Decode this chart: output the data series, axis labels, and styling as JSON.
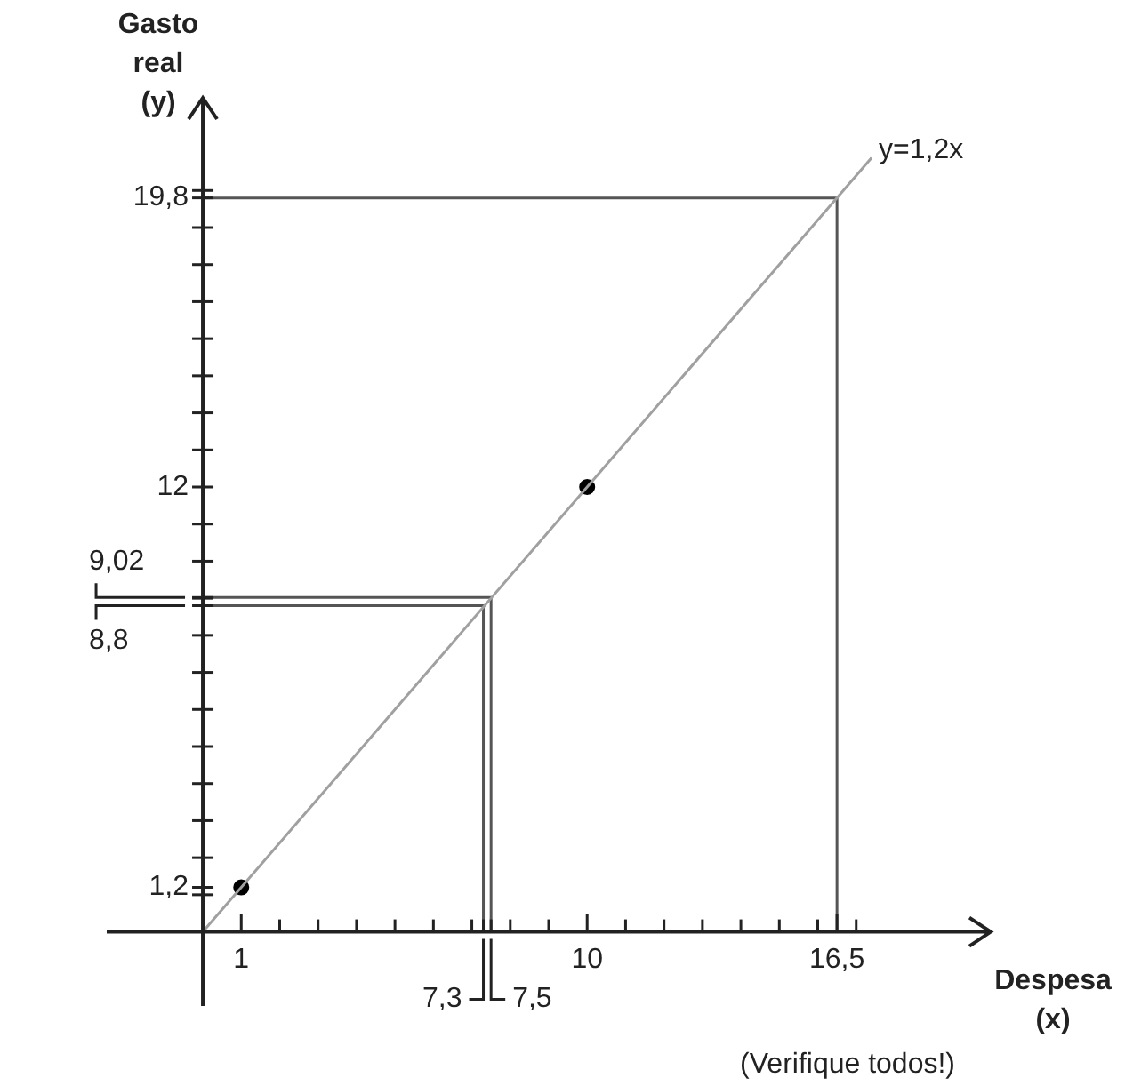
{
  "chart_data": {
    "type": "line",
    "xlabel": "Despesa (x)",
    "ylabel": "Gasto real (y)",
    "xlim": [
      -2.5,
      20.5
    ],
    "ylim": [
      -2,
      22.5
    ],
    "xticks": [
      {
        "value": 1,
        "label": "1"
      },
      {
        "value": 2,
        "label": null
      },
      {
        "value": 3,
        "label": null
      },
      {
        "value": 4,
        "label": null
      },
      {
        "value": 5,
        "label": null
      },
      {
        "value": 6,
        "label": null
      },
      {
        "value": 7,
        "label": null
      },
      {
        "value": 7.3,
        "label": null
      },
      {
        "value": 7.5,
        "label": null
      },
      {
        "value": 8,
        "label": null
      },
      {
        "value": 9,
        "label": null
      },
      {
        "value": 10,
        "label": "10"
      },
      {
        "value": 11,
        "label": null
      },
      {
        "value": 12,
        "label": null
      },
      {
        "value": 13,
        "label": null
      },
      {
        "value": 14,
        "label": null
      },
      {
        "value": 15,
        "label": null
      },
      {
        "value": 16,
        "label": null
      },
      {
        "value": 16.5,
        "label": "16,5"
      },
      {
        "value": 17,
        "label": null
      }
    ],
    "yticks": [
      {
        "value": 1,
        "label": null
      },
      {
        "value": 1.2,
        "label": "1,2"
      },
      {
        "value": 2,
        "label": null
      },
      {
        "value": 3,
        "label": null
      },
      {
        "value": 4,
        "label": null
      },
      {
        "value": 5,
        "label": null
      },
      {
        "value": 6,
        "label": null
      },
      {
        "value": 7,
        "label": null
      },
      {
        "value": 8,
        "label": null
      },
      {
        "value": 8.8,
        "label": null
      },
      {
        "value": 9,
        "label": null
      },
      {
        "value": 9.02,
        "label": null
      },
      {
        "value": 10,
        "label": null
      },
      {
        "value": 11,
        "label": null
      },
      {
        "value": 12,
        "label": "12"
      },
      {
        "value": 13,
        "label": null
      },
      {
        "value": 14,
        "label": null
      },
      {
        "value": 15,
        "label": null
      },
      {
        "value": 16,
        "label": null
      },
      {
        "value": 17,
        "label": null
      },
      {
        "value": 18,
        "label": null
      },
      {
        "value": 19,
        "label": null
      },
      {
        "value": 19.8,
        "label": "19,8"
      },
      {
        "value": 20,
        "label": null
      }
    ],
    "series": [
      {
        "name": "y=1,2x",
        "type": "line",
        "color": "#a0a0a0",
        "x": [
          0,
          17.4
        ],
        "values": [
          0,
          20.88
        ]
      },
      {
        "type": "scatter",
        "marker": "circle",
        "color": "#000000",
        "x": [
          1,
          10
        ],
        "values": [
          1.2,
          12
        ]
      },
      {
        "type": "line",
        "color": "#555555",
        "x": [
          0,
          16.5,
          16.5
        ],
        "values": [
          19.8,
          19.8,
          0
        ]
      },
      {
        "type": "line",
        "color": "#555555",
        "x": [
          0,
          7.5,
          7.5
        ],
        "values": [
          9.02,
          9.02,
          0
        ]
      },
      {
        "type": "line",
        "color": "#555555",
        "x": [
          0,
          7.3,
          7.3
        ],
        "values": [
          8.8,
          8.8,
          0
        ]
      }
    ],
    "annotations": [
      "(Verifique todos!)",
      {
        "text": "7,3",
        "x": 7.3,
        "y": 0
      },
      {
        "text": "7,5",
        "x": 7.5,
        "y": 0
      },
      {
        "text": "8,8",
        "x": 0,
        "y": 8.8
      },
      {
        "text": "9,02",
        "x": 0,
        "y": 9.02
      }
    ],
    "legend": false,
    "grid": false
  }
}
